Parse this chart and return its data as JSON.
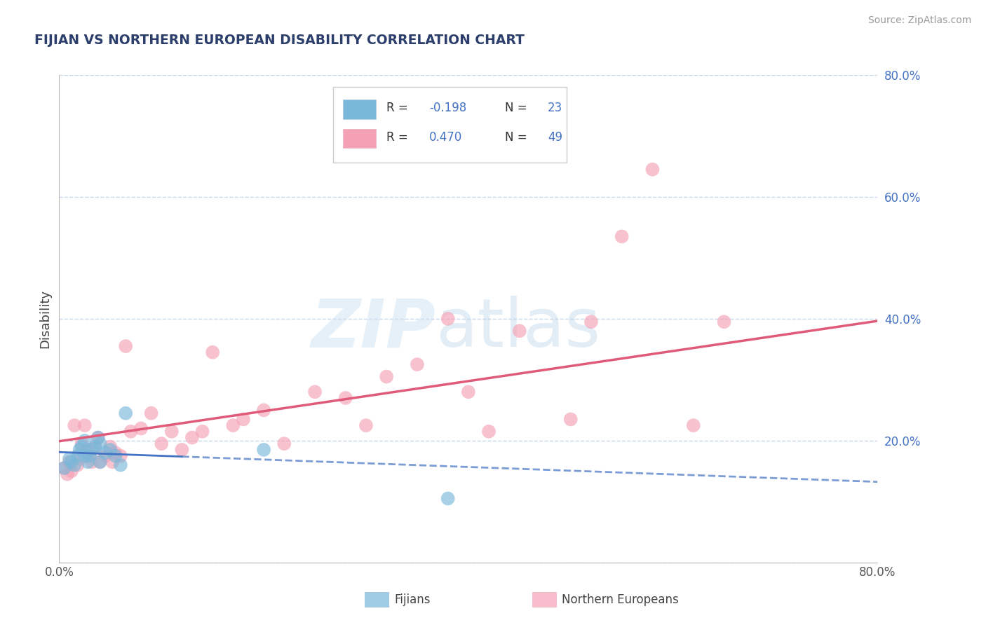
{
  "title": "FIJIAN VS NORTHERN EUROPEAN DISABILITY CORRELATION CHART",
  "source": "Source: ZipAtlas.com",
  "ylabel": "Disability",
  "watermark_zip": "ZIP",
  "watermark_atlas": "atlas",
  "fijian_color": "#7ab8d9",
  "fijian_line_color": "#4472c4",
  "northern_color": "#f4a0b5",
  "northern_line_color": "#e05a7a",
  "legend_text_color": "#4472c4",
  "legend_label_color": "#333333",
  "fijian_R": -0.198,
  "northern_R": 0.47,
  "fijian_N": 23,
  "northern_N": 49,
  "xlim": [
    0.0,
    0.8
  ],
  "ylim": [
    0.0,
    0.8
  ],
  "grid_color": "#c8d8ea",
  "grid_yticks": [
    0.0,
    0.2,
    0.4,
    0.6,
    0.8
  ],
  "background_color": "#ffffff",
  "fijian_x": [
    0.005,
    0.01,
    0.012,
    0.015,
    0.018,
    0.02,
    0.022,
    0.025,
    0.025,
    0.028,
    0.03,
    0.032,
    0.035,
    0.038,
    0.04,
    0.04,
    0.045,
    0.05,
    0.055,
    0.06,
    0.065,
    0.2,
    0.38
  ],
  "fijian_y": [
    0.155,
    0.17,
    0.165,
    0.16,
    0.175,
    0.185,
    0.19,
    0.175,
    0.2,
    0.165,
    0.175,
    0.185,
    0.19,
    0.205,
    0.165,
    0.195,
    0.18,
    0.185,
    0.175,
    0.16,
    0.245,
    0.185,
    0.105
  ],
  "northern_x": [
    0.005,
    0.008,
    0.01,
    0.012,
    0.015,
    0.018,
    0.02,
    0.022,
    0.025,
    0.028,
    0.03,
    0.032,
    0.035,
    0.038,
    0.04,
    0.045,
    0.05,
    0.052,
    0.055,
    0.06,
    0.065,
    0.07,
    0.08,
    0.09,
    0.1,
    0.11,
    0.12,
    0.13,
    0.14,
    0.15,
    0.17,
    0.18,
    0.2,
    0.22,
    0.25,
    0.28,
    0.3,
    0.32,
    0.35,
    0.38,
    0.4,
    0.42,
    0.45,
    0.5,
    0.52,
    0.55,
    0.58,
    0.62,
    0.65
  ],
  "northern_y": [
    0.155,
    0.145,
    0.165,
    0.15,
    0.225,
    0.16,
    0.17,
    0.195,
    0.225,
    0.185,
    0.175,
    0.165,
    0.19,
    0.205,
    0.165,
    0.175,
    0.19,
    0.165,
    0.18,
    0.175,
    0.355,
    0.215,
    0.22,
    0.245,
    0.195,
    0.215,
    0.185,
    0.205,
    0.215,
    0.345,
    0.225,
    0.235,
    0.25,
    0.195,
    0.28,
    0.27,
    0.225,
    0.305,
    0.325,
    0.4,
    0.28,
    0.215,
    0.38,
    0.235,
    0.395,
    0.535,
    0.645,
    0.225,
    0.395
  ],
  "legend_bottom_fijians": "Fijians",
  "legend_bottom_northern": "Northern Europeans"
}
